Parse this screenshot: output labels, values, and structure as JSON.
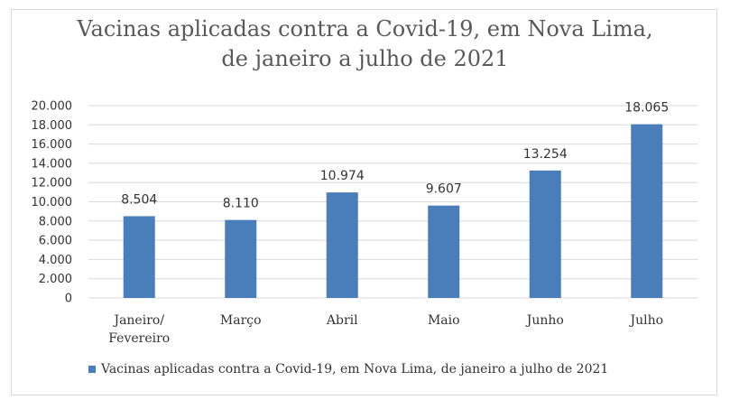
{
  "chart_data": {
    "type": "bar",
    "title_line1": "Vacinas aplicadas contra a Covid-19, em Nova Lima,",
    "title_line2": "de janeiro a julho de 2021",
    "categories": [
      [
        "Janeiro/",
        "Fevereiro"
      ],
      [
        "Março"
      ],
      [
        "Abril"
      ],
      [
        "Maio"
      ],
      [
        "Junho"
      ],
      [
        "Julho"
      ]
    ],
    "series": [
      {
        "name": "Vacinas aplicadas contra a Covid-19, em Nova Lima, de janeiro a julho de 2021",
        "values": [
          8504,
          8110,
          10974,
          9607,
          13254,
          18065
        ],
        "data_labels": [
          "8.504",
          "8.110",
          "10.974",
          "9.607",
          "13.254",
          "18.065"
        ]
      }
    ],
    "ylim": [
      0,
      20000
    ],
    "yticks": [
      0,
      2000,
      4000,
      6000,
      8000,
      10000,
      12000,
      14000,
      16000,
      18000,
      20000
    ],
    "ytick_labels": [
      "0",
      "2.000",
      "4.000",
      "6.000",
      "8.000",
      "10.000",
      "12.000",
      "14.000",
      "16.000",
      "18.000",
      "20.000"
    ],
    "grid": true,
    "legend_position": "bottom",
    "colors": {
      "bar": "#4a7ebb",
      "grid": "#d9d9d9",
      "title": "#595959"
    }
  }
}
